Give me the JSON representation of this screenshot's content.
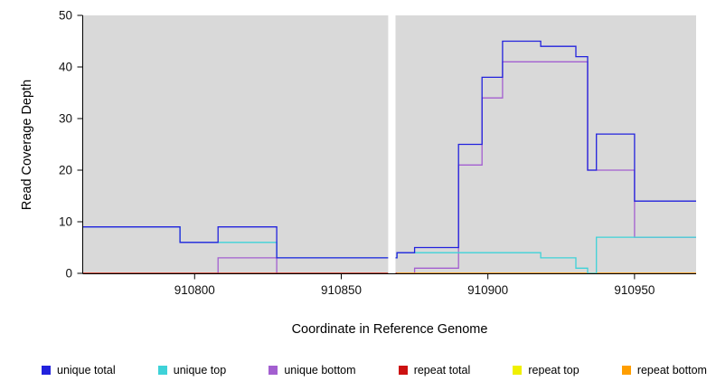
{
  "chart_data": {
    "type": "line",
    "subtype": "step",
    "title": "",
    "xlabel": "Coordinate in Reference Genome",
    "ylabel": "Read Coverage Depth",
    "xlim": [
      910762,
      910971
    ],
    "ylim": [
      0,
      50
    ],
    "xticks": [
      910800,
      910850,
      910900,
      910950
    ],
    "yticks": [
      0,
      10,
      20,
      30,
      40,
      50
    ],
    "grid": false,
    "plot_bg": "#d9d9d9",
    "gap_band": {
      "from": 910866,
      "to": 910868.5,
      "color": "#ffffff"
    },
    "legend_position": "bottom",
    "draw_order": [
      2,
      4,
      3,
      5,
      1,
      0
    ],
    "series": [
      {
        "name": "unique total",
        "color": "#2222dd",
        "xend": 910971,
        "points": [
          [
            910762,
            9
          ],
          [
            910795,
            6
          ],
          [
            910808,
            9
          ],
          [
            910828,
            3
          ],
          [
            910869,
            4
          ],
          [
            910875,
            5
          ],
          [
            910890,
            25
          ],
          [
            910898,
            38
          ],
          [
            910905,
            45
          ],
          [
            910918,
            44
          ],
          [
            910930,
            42
          ],
          [
            910934,
            20
          ],
          [
            910937,
            27
          ],
          [
            910950,
            14
          ]
        ]
      },
      {
        "name": "unique top",
        "color": "#3ed2d8",
        "xend": 910971,
        "points": [
          [
            910762,
            9
          ],
          [
            910795,
            6
          ],
          [
            910828,
            3
          ],
          [
            910869,
            4
          ],
          [
            910918,
            3
          ],
          [
            910930,
            1
          ],
          [
            910934,
            0
          ],
          [
            910937,
            7
          ]
        ]
      },
      {
        "name": "unique bottom",
        "color": "#a35fd0",
        "xend": 910971,
        "points": [
          [
            910762,
            0
          ],
          [
            910808,
            3
          ],
          [
            910828,
            0
          ],
          [
            910875,
            1
          ],
          [
            910890,
            21
          ],
          [
            910898,
            34
          ],
          [
            910905,
            41
          ],
          [
            910934,
            20
          ],
          [
            910950,
            7
          ]
        ]
      },
      {
        "name": "repeat total",
        "color": "#cc1111",
        "xend": 910971,
        "points": [
          [
            910762,
            0
          ]
        ]
      },
      {
        "name": "repeat top",
        "color": "#f0f000",
        "xend": 910971,
        "points": [
          [
            910762,
            0
          ]
        ]
      },
      {
        "name": "repeat bottom",
        "color": "#ff9e00",
        "xend": 910971,
        "points": [
          [
            910869,
            0
          ]
        ]
      }
    ]
  }
}
